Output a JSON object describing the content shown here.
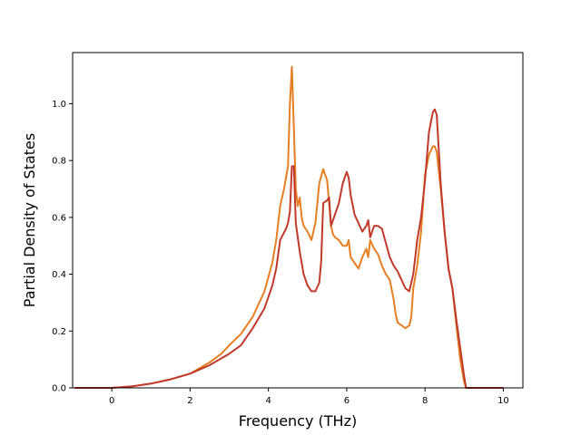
{
  "chart_data": {
    "type": "line",
    "title": "",
    "xlabel": "Frequency (THz)",
    "ylabel": "Partial Density of States",
    "xlim": [
      -1.0,
      10.5
    ],
    "ylim": [
      0.0,
      1.18
    ],
    "xticks": [
      0,
      2,
      4,
      6,
      8,
      10
    ],
    "yticks": [
      0.0,
      0.2,
      0.4,
      0.6,
      0.8,
      1.0
    ],
    "xtick_labels": [
      "0",
      "2",
      "4",
      "6",
      "8",
      "10"
    ],
    "ytick_labels": [
      "0.0",
      "0.2",
      "0.4",
      "0.6",
      "0.8",
      "1.0"
    ],
    "grid": false,
    "legend": "none",
    "series": [
      {
        "color": "#e67e22",
        "x": [
          -0.95,
          0.0,
          0.5,
          1.0,
          1.5,
          2.0,
          2.5,
          2.8,
          3.0,
          3.3,
          3.6,
          3.9,
          4.1,
          4.2,
          4.3,
          4.4,
          4.45,
          4.5,
          4.55,
          4.6,
          4.7,
          4.75,
          4.8,
          4.85,
          4.9,
          5.0,
          5.1,
          5.2,
          5.3,
          5.4,
          5.5,
          5.6,
          5.65,
          5.7,
          5.8,
          5.9,
          6.0,
          6.05,
          6.1,
          6.2,
          6.3,
          6.4,
          6.5,
          6.55,
          6.6,
          6.7,
          6.8,
          6.9,
          7.0,
          7.1,
          7.2,
          7.25,
          7.3,
          7.4,
          7.5,
          7.6,
          7.65,
          7.7,
          7.8,
          7.9,
          8.0,
          8.1,
          8.2,
          8.25,
          8.3,
          8.4,
          8.5,
          8.6,
          8.7,
          8.8,
          8.9,
          9.0,
          9.05,
          9.1,
          9.5,
          10.0
        ],
        "y": [
          0.0,
          0.0,
          0.005,
          0.015,
          0.03,
          0.05,
          0.09,
          0.12,
          0.15,
          0.19,
          0.25,
          0.34,
          0.44,
          0.52,
          0.64,
          0.7,
          0.74,
          0.78,
          1.0,
          1.13,
          0.7,
          0.64,
          0.67,
          0.6,
          0.57,
          0.55,
          0.52,
          0.58,
          0.72,
          0.77,
          0.73,
          0.57,
          0.54,
          0.53,
          0.52,
          0.5,
          0.5,
          0.52,
          0.46,
          0.44,
          0.42,
          0.46,
          0.49,
          0.46,
          0.52,
          0.49,
          0.47,
          0.43,
          0.4,
          0.38,
          0.31,
          0.26,
          0.23,
          0.22,
          0.21,
          0.22,
          0.25,
          0.35,
          0.43,
          0.55,
          0.75,
          0.82,
          0.85,
          0.85,
          0.83,
          0.7,
          0.55,
          0.42,
          0.35,
          0.22,
          0.1,
          0.02,
          0.0,
          0.0,
          0.0,
          0.0
        ]
      },
      {
        "color": "#c0392b",
        "x": [
          -0.95,
          0.0,
          0.5,
          1.0,
          1.5,
          2.0,
          2.5,
          3.0,
          3.3,
          3.6,
          3.9,
          4.1,
          4.2,
          4.3,
          4.45,
          4.5,
          4.55,
          4.6,
          4.65,
          4.7,
          4.8,
          4.9,
          5.0,
          5.1,
          5.2,
          5.3,
          5.35,
          5.4,
          5.5,
          5.55,
          5.6,
          5.7,
          5.8,
          5.9,
          6.0,
          6.05,
          6.1,
          6.2,
          6.3,
          6.4,
          6.5,
          6.55,
          6.6,
          6.7,
          6.8,
          6.9,
          7.0,
          7.1,
          7.2,
          7.3,
          7.4,
          7.5,
          7.6,
          7.7,
          7.8,
          7.9,
          8.0,
          8.1,
          8.2,
          8.25,
          8.3,
          8.4,
          8.5,
          8.6,
          8.7,
          8.8,
          8.9,
          9.0,
          9.05,
          9.1,
          9.5,
          10.0
        ],
        "y": [
          0.0,
          0.0,
          0.005,
          0.015,
          0.03,
          0.05,
          0.08,
          0.12,
          0.15,
          0.21,
          0.28,
          0.36,
          0.42,
          0.52,
          0.56,
          0.58,
          0.62,
          0.78,
          0.78,
          0.58,
          0.48,
          0.4,
          0.36,
          0.34,
          0.34,
          0.37,
          0.45,
          0.65,
          0.66,
          0.67,
          0.57,
          0.61,
          0.65,
          0.72,
          0.76,
          0.74,
          0.68,
          0.61,
          0.58,
          0.55,
          0.57,
          0.59,
          0.53,
          0.57,
          0.57,
          0.56,
          0.51,
          0.46,
          0.43,
          0.41,
          0.38,
          0.35,
          0.34,
          0.4,
          0.52,
          0.6,
          0.73,
          0.9,
          0.97,
          0.98,
          0.96,
          0.72,
          0.55,
          0.42,
          0.35,
          0.24,
          0.14,
          0.04,
          0.0,
          0.0,
          0.0,
          0.0
        ]
      }
    ]
  }
}
